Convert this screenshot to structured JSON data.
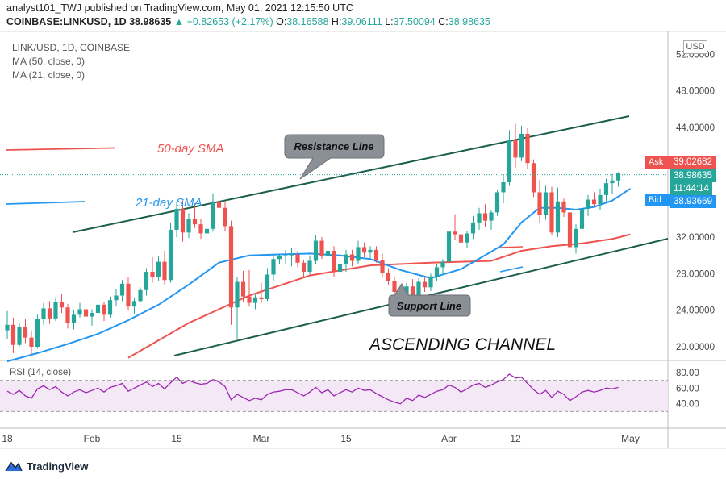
{
  "header": {
    "line1": "analyst101_TWJ published on TradingView.com, May 01, 2021 12:15:50 UTC",
    "symbol": "COINBASE:LINKUSD, 1D",
    "last": "38.98635",
    "change": "▲ +0.82653 (+2.17%)",
    "o_label": "O:",
    "o": "38.16588",
    "h_label": "H:",
    "h": "39.06111",
    "l_label": "L:",
    "l": "37.50094",
    "c_label": "C:",
    "c": "38.98635"
  },
  "legend": {
    "pair": "LINK/USD, 1D, COINBASE",
    "ma50": "MA (50, close, 0)",
    "ma21": "MA (21, close, 0)"
  },
  "currency": "USD",
  "price_tags": {
    "ask_label": "Ask",
    "ask": "39.02682",
    "last": "38.98635",
    "countdown": "11:44:14",
    "bid_label": "Bid",
    "bid": "38.93669"
  },
  "annotations": {
    "sma50": "50-day SMA",
    "sma21": "21-day SMA",
    "resistance": "Resistance Line",
    "support": "Support Line",
    "pattern": "ASCENDING CHANNEL"
  },
  "rsi": {
    "label": "RSI (14, close)",
    "ticks": [
      "80.00",
      "60.00",
      "40.00"
    ]
  },
  "footer": {
    "brand": "TradingView"
  },
  "colors": {
    "up": "#26a69a",
    "down": "#ef5350",
    "sma50": "#ef5350",
    "sma21": "#2196f3",
    "trend": "#1b5e4a",
    "rsi": "#9c27b0",
    "ask": "#ef5350",
    "bid": "#2196f3"
  },
  "chart_data": {
    "type": "candlestick",
    "symbol": "LINK/USD",
    "interval": "1D",
    "ylim": [
      18.5,
      54.5
    ],
    "yticks": [
      "52.00000",
      "48.00000",
      "44.00000",
      "32.00000",
      "28.00000",
      "24.00000",
      "20.00000"
    ],
    "xticks": [
      {
        "day": 0,
        "label": "18"
      },
      {
        "day": 14,
        "label": "Feb"
      },
      {
        "day": 28,
        "label": "15"
      },
      {
        "day": 42,
        "label": "Mar"
      },
      {
        "day": 56,
        "label": "15"
      },
      {
        "day": 73,
        "label": "Apr"
      },
      {
        "day": 84,
        "label": "12"
      },
      {
        "day": 103,
        "label": "May"
      }
    ],
    "candles": [
      [
        21.8,
        23.9,
        20.8,
        22.4
      ],
      [
        22.4,
        23.2,
        19.3,
        20.2
      ],
      [
        20.2,
        22.6,
        20.0,
        22.2
      ],
      [
        22.2,
        23.0,
        20.4,
        21.0
      ],
      [
        21.0,
        21.8,
        19.2,
        20.0
      ],
      [
        20.0,
        23.5,
        19.8,
        23.0
      ],
      [
        23.0,
        24.8,
        22.4,
        24.2
      ],
      [
        24.2,
        25.0,
        22.5,
        23.1
      ],
      [
        23.1,
        25.4,
        22.8,
        24.9
      ],
      [
        24.9,
        25.8,
        23.7,
        24.3
      ],
      [
        24.3,
        24.7,
        22.0,
        22.6
      ],
      [
        22.6,
        24.0,
        21.9,
        23.5
      ],
      [
        23.5,
        24.8,
        23.2,
        24.1
      ],
      [
        24.1,
        24.7,
        22.9,
        23.3
      ],
      [
        23.3,
        24.1,
        22.3,
        23.7
      ],
      [
        23.7,
        25.0,
        23.4,
        24.6
      ],
      [
        24.6,
        24.9,
        22.8,
        23.5
      ],
      [
        23.5,
        25.5,
        23.2,
        25.1
      ],
      [
        25.1,
        26.3,
        24.5,
        25.6
      ],
      [
        25.6,
        27.3,
        25.0,
        26.9
      ],
      [
        26.9,
        27.6,
        24.0,
        24.4
      ],
      [
        24.4,
        25.4,
        23.6,
        25.0
      ],
      [
        25.0,
        26.5,
        24.8,
        26.2
      ],
      [
        26.2,
        28.6,
        25.6,
        28.2
      ],
      [
        28.2,
        29.8,
        27.0,
        27.6
      ],
      [
        27.6,
        29.9,
        27.2,
        29.3
      ],
      [
        29.3,
        30.5,
        26.8,
        27.3
      ],
      [
        27.3,
        33.5,
        27.0,
        32.8
      ],
      [
        32.8,
        35.9,
        32.0,
        35.1
      ],
      [
        35.1,
        36.0,
        31.5,
        32.5
      ],
      [
        32.5,
        34.6,
        31.9,
        34.0
      ],
      [
        34.0,
        35.7,
        33.0,
        33.4
      ],
      [
        33.4,
        34.0,
        31.8,
        32.4
      ],
      [
        32.4,
        33.6,
        31.7,
        32.9
      ],
      [
        32.9,
        36.8,
        32.6,
        35.9
      ],
      [
        35.9,
        36.6,
        34.0,
        35.2
      ],
      [
        35.2,
        35.9,
        32.6,
        33.2
      ],
      [
        33.2,
        33.8,
        22.4,
        24.3
      ],
      [
        24.3,
        27.6,
        20.8,
        27.1
      ],
      [
        27.1,
        28.3,
        24.9,
        25.5
      ],
      [
        25.5,
        28.4,
        24.4,
        24.8
      ],
      [
        24.8,
        25.7,
        24.1,
        25.4
      ],
      [
        25.4,
        27.0,
        24.8,
        25.2
      ],
      [
        25.2,
        28.6,
        25.0,
        27.9
      ],
      [
        27.9,
        30.1,
        27.2,
        29.6
      ],
      [
        29.6,
        30.2,
        29.0,
        29.9
      ],
      [
        29.9,
        30.6,
        29.1,
        30.0
      ],
      [
        30.0,
        30.8,
        28.8,
        30.1
      ],
      [
        30.1,
        30.5,
        28.7,
        29.2
      ],
      [
        29.2,
        29.5,
        27.5,
        28.2
      ],
      [
        28.2,
        30.0,
        27.9,
        29.4
      ],
      [
        29.4,
        32.2,
        29.0,
        31.6
      ],
      [
        31.6,
        32.0,
        29.6,
        29.9
      ],
      [
        29.9,
        31.2,
        29.4,
        30.5
      ],
      [
        30.5,
        31.0,
        27.6,
        28.2
      ],
      [
        28.2,
        29.8,
        27.6,
        29.0
      ],
      [
        29.0,
        30.6,
        28.2,
        30.1
      ],
      [
        30.1,
        30.6,
        28.8,
        29.4
      ],
      [
        29.4,
        31.6,
        29.0,
        30.9
      ],
      [
        30.9,
        31.4,
        29.8,
        30.3
      ],
      [
        30.3,
        31.0,
        29.6,
        30.6
      ],
      [
        30.6,
        31.0,
        29.2,
        29.5
      ],
      [
        29.5,
        30.2,
        27.6,
        28.1
      ],
      [
        28.1,
        28.6,
        26.7,
        27.2
      ],
      [
        27.2,
        27.6,
        25.2,
        26.0
      ],
      [
        26.0,
        26.6,
        24.3,
        25.1
      ],
      [
        25.1,
        27.0,
        24.6,
        26.6
      ],
      [
        26.6,
        27.4,
        25.3,
        25.6
      ],
      [
        25.6,
        27.5,
        25.2,
        27.1
      ],
      [
        27.1,
        27.7,
        26.0,
        26.5
      ],
      [
        26.5,
        28.0,
        26.1,
        27.7
      ],
      [
        27.7,
        29.0,
        27.2,
        28.7
      ],
      [
        28.7,
        29.6,
        28.0,
        29.3
      ],
      [
        29.3,
        33.0,
        29.0,
        32.6
      ],
      [
        32.6,
        34.5,
        31.7,
        32.3
      ],
      [
        32.3,
        33.1,
        30.6,
        31.4
      ],
      [
        31.4,
        32.7,
        30.8,
        32.4
      ],
      [
        32.4,
        34.3,
        31.8,
        33.6
      ],
      [
        33.6,
        35.2,
        32.8,
        34.6
      ],
      [
        34.6,
        35.6,
        33.1,
        33.8
      ],
      [
        33.8,
        35.0,
        32.8,
        34.7
      ],
      [
        34.7,
        37.2,
        34.3,
        36.9
      ],
      [
        36.9,
        38.8,
        35.7,
        38.0
      ],
      [
        38.0,
        43.7,
        37.6,
        42.6
      ],
      [
        42.6,
        44.4,
        39.6,
        40.7
      ],
      [
        40.7,
        44.2,
        40.3,
        43.3
      ],
      [
        43.3,
        43.9,
        39.4,
        40.1
      ],
      [
        40.1,
        40.5,
        36.4,
        36.9
      ],
      [
        36.9,
        38.3,
        33.6,
        34.4
      ],
      [
        34.4,
        37.6,
        33.9,
        36.9
      ],
      [
        36.9,
        37.5,
        32.2,
        32.5
      ],
      [
        32.5,
        37.4,
        32.0,
        35.9
      ],
      [
        35.9,
        36.2,
        34.2,
        34.7
      ],
      [
        34.7,
        35.3,
        29.8,
        30.9
      ],
      [
        30.9,
        33.4,
        30.2,
        32.9
      ],
      [
        32.9,
        35.6,
        31.5,
        35.1
      ],
      [
        35.1,
        36.6,
        34.3,
        36.1
      ],
      [
        36.1,
        36.9,
        35.4,
        35.6
      ],
      [
        35.6,
        37.3,
        35.0,
        36.6
      ],
      [
        36.6,
        38.4,
        35.9,
        37.9
      ],
      [
        37.9,
        38.9,
        36.7,
        38.2
      ],
      [
        38.2,
        39.1,
        37.5,
        39.0
      ]
    ],
    "series": [
      {
        "name": "MA (50, close, 0)",
        "x": [
          20,
          30,
          40,
          50,
          60,
          70,
          80,
          85,
          90,
          95,
          100,
          103
        ],
        "values": [
          18.8,
          22.6,
          25.6,
          27.8,
          28.9,
          29.2,
          29.4,
          30.5,
          31.0,
          31.3,
          31.8,
          32.3
        ]
      },
      {
        "name": "MA (21, close, 0)",
        "x": [
          0,
          5,
          10,
          15,
          20,
          25,
          30,
          35,
          40,
          45,
          50,
          55,
          60,
          65,
          70,
          75,
          80,
          82,
          85,
          88,
          91,
          94,
          97,
          100,
          103
        ],
        "values": [
          18.4,
          19.3,
          20.3,
          21.4,
          22.9,
          24.6,
          26.8,
          29.2,
          30.0,
          30.1,
          30.2,
          30.0,
          29.6,
          28.4,
          27.5,
          28.5,
          30.4,
          31.2,
          33.6,
          35.2,
          35.2,
          35.0,
          35.3,
          36.0,
          37.3
        ]
      }
    ],
    "rsi_values": [
      56,
      52,
      57,
      50,
      47,
      59,
      63,
      58,
      62,
      55,
      50,
      55,
      58,
      54,
      57,
      60,
      55,
      61,
      63,
      66,
      56,
      60,
      64,
      68,
      62,
      66,
      59,
      67,
      74,
      66,
      70,
      67,
      65,
      66,
      71,
      68,
      62,
      45,
      52,
      48,
      44,
      47,
      45,
      52,
      55,
      56,
      58,
      58,
      54,
      50,
      55,
      61,
      54,
      58,
      50,
      54,
      58,
      55,
      60,
      57,
      58,
      53,
      49,
      45,
      42,
      40,
      47,
      44,
      51,
      48,
      52,
      56,
      58,
      64,
      61,
      55,
      59,
      64,
      66,
      61,
      64,
      68,
      71,
      78,
      73,
      74,
      66,
      58,
      52,
      57,
      48,
      56,
      52,
      44,
      49,
      55,
      57,
      55,
      57,
      60,
      59,
      61
    ]
  }
}
